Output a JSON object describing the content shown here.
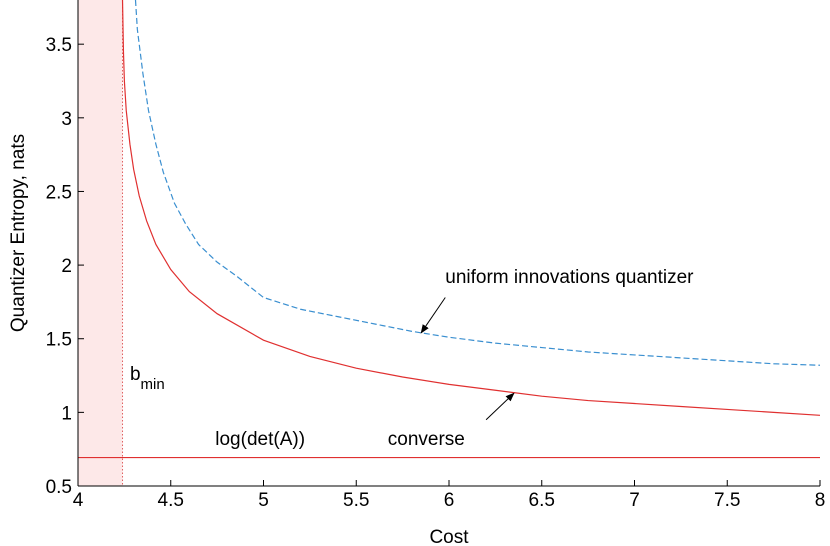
{
  "chart_data": {
    "type": "line",
    "title": "",
    "xlabel": "Cost",
    "ylabel": "Quantizer Entropy, nats",
    "xlim": [
      4,
      8
    ],
    "ylim": [
      0.5,
      3.8
    ],
    "grid": false,
    "x_ticks": [
      4,
      4.5,
      5,
      5.5,
      6,
      6.5,
      7,
      7.5,
      8
    ],
    "x_tick_labels": [
      "4",
      "4.5",
      "5",
      "5.5",
      "6",
      "6.5",
      "7",
      "7.5",
      "8"
    ],
    "y_ticks": [
      0.5,
      1,
      1.5,
      2,
      2.5,
      3,
      3.5
    ],
    "y_tick_labels": [
      "0.5",
      "1",
      "1.5",
      "2",
      "2.5",
      "3",
      "3.5"
    ],
    "shaded_region": {
      "x_from": 4.0,
      "x_to": 4.24,
      "color": "#fde8e8"
    },
    "series": [
      {
        "id": "converse",
        "color": "#e03030",
        "style": "solid",
        "points": [
          [
            4.24,
            3.8
          ],
          [
            4.245,
            3.45
          ],
          [
            4.25,
            3.25
          ],
          [
            4.26,
            3.05
          ],
          [
            4.28,
            2.82
          ],
          [
            4.3,
            2.65
          ],
          [
            4.33,
            2.47
          ],
          [
            4.37,
            2.3
          ],
          [
            4.42,
            2.14
          ],
          [
            4.5,
            1.97
          ],
          [
            4.6,
            1.82
          ],
          [
            4.75,
            1.67
          ],
          [
            5.0,
            1.49
          ],
          [
            5.25,
            1.38
          ],
          [
            5.5,
            1.3
          ],
          [
            5.75,
            1.24
          ],
          [
            6.0,
            1.19
          ],
          [
            6.25,
            1.15
          ],
          [
            6.5,
            1.11
          ],
          [
            6.75,
            1.08
          ],
          [
            7.0,
            1.06
          ],
          [
            7.25,
            1.04
          ],
          [
            7.5,
            1.02
          ],
          [
            7.75,
            1.0
          ],
          [
            8.0,
            0.98
          ]
        ]
      },
      {
        "id": "uniform-innovations-quantizer",
        "color": "#3a8fd0",
        "style": "dashed",
        "points": [
          [
            4.31,
            3.8
          ],
          [
            4.32,
            3.6
          ],
          [
            4.35,
            3.3
          ],
          [
            4.38,
            3.05
          ],
          [
            4.42,
            2.82
          ],
          [
            4.46,
            2.63
          ],
          [
            4.52,
            2.42
          ],
          [
            4.58,
            2.28
          ],
          [
            4.65,
            2.14
          ],
          [
            4.75,
            2.02
          ],
          [
            4.85,
            1.93
          ],
          [
            5.0,
            1.78
          ],
          [
            5.2,
            1.7
          ],
          [
            5.4,
            1.65
          ],
          [
            5.6,
            1.6
          ],
          [
            5.8,
            1.55
          ],
          [
            6.0,
            1.51
          ],
          [
            6.25,
            1.47
          ],
          [
            6.5,
            1.44
          ],
          [
            6.75,
            1.41
          ],
          [
            7.0,
            1.39
          ],
          [
            7.25,
            1.37
          ],
          [
            7.5,
            1.35
          ],
          [
            7.75,
            1.33
          ],
          [
            8.0,
            1.32
          ]
        ]
      },
      {
        "id": "log-det-line",
        "color": "#e03030",
        "style": "solid",
        "points": [
          [
            4.0,
            0.693
          ],
          [
            8.0,
            0.693
          ]
        ]
      }
    ],
    "b_min_x": 4.24,
    "annotations": {
      "uniform": {
        "text": "uniform innovations quantizer",
        "x": 5.98,
        "y": 1.88,
        "arrow_from": [
          5.98,
          1.78
        ],
        "arrow_to": [
          5.85,
          1.54
        ]
      },
      "converse": {
        "text": "converse",
        "x": 5.67,
        "y": 0.78,
        "arrow_from": [
          6.2,
          0.95
        ],
        "arrow_to": [
          6.35,
          1.13
        ]
      },
      "logdet": {
        "text": "log(det(A))",
        "x": 4.74,
        "y": 0.78
      },
      "bmin": {
        "text": "b",
        "subscript": "min",
        "x": 4.28,
        "y": 1.22
      }
    }
  }
}
